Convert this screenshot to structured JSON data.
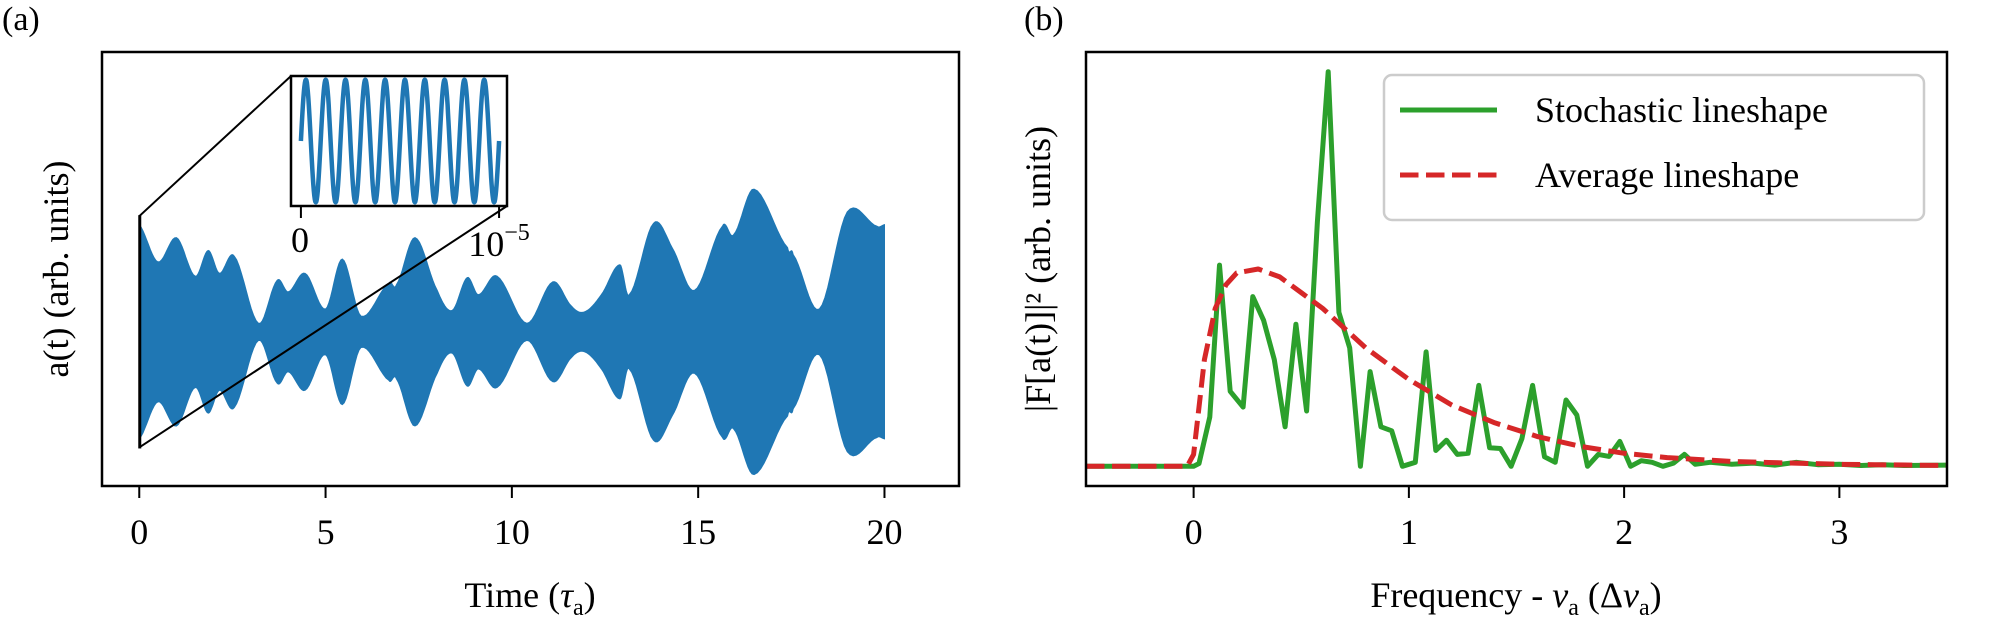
{
  "chart_data": [
    {
      "panel_label": "(a)",
      "type": "area",
      "xlabel": {
        "text": "Time (",
        "var": "τ",
        "sub": "a",
        "close": ")"
      },
      "ylabel": "a(t) (arb. units)",
      "xlim": [
        -1,
        22
      ],
      "ylim": [
        -1.08,
        1.96
      ],
      "xticks": [
        "0",
        "5",
        "10",
        "15",
        "20"
      ],
      "xtick_values": [
        0,
        5,
        10,
        15,
        20
      ],
      "yticks": [],
      "grid": false,
      "color": "#1f77b4",
      "description_of_series": "envelope",
      "envelope": {
        "t": [
          0,
          0.5,
          1.0,
          1.5,
          1.85,
          2.15,
          2.55,
          3.2,
          3.7,
          4.0,
          4.45,
          5.0,
          5.45,
          5.95,
          6.7,
          6.9,
          7.4,
          8.0,
          8.4,
          8.8,
          9.1,
          9.6,
          10.4,
          11.1,
          11.6,
          11.95,
          12.4,
          12.9,
          13.15,
          13.8,
          14.3,
          14.9,
          15.65,
          15.95,
          16.5,
          17.4,
          17.55,
          18.25,
          19.0,
          19.8,
          20
        ],
        "amplitude": [
          0.75,
          0.49,
          0.66,
          0.39,
          0.57,
          0.41,
          0.53,
          0.06,
          0.36,
          0.28,
          0.41,
          0.16,
          0.51,
          0.11,
          0.34,
          0.33,
          0.66,
          0.29,
          0.15,
          0.38,
          0.26,
          0.39,
          0.06,
          0.35,
          0.18,
          0.14,
          0.26,
          0.47,
          0.26,
          0.76,
          0.59,
          0.29,
          0.74,
          0.68,
          1.0,
          0.59,
          0.54,
          0.16,
          0.84,
          0.74,
          0.75
        ]
      },
      "inset": {
        "type": "line",
        "xlim": [
          -5e-07,
          1.04e-05
        ],
        "ylim": [
          -1.06,
          1.06
        ],
        "cycles": 10,
        "xticks": [
          "0",
          {
            "base": "10",
            "exp": "−5"
          }
        ],
        "xtick_values": [
          0,
          1e-05
        ],
        "zoom_region": {
          "x": [
            0,
            1e-05
          ],
          "y": [
            -0.81,
            0.81
          ]
        }
      }
    },
    {
      "panel_label": "(b)",
      "type": "line",
      "xlabel": {
        "text": "Frequency - ",
        "var": "ν",
        "sub": "a",
        "mid": " (Δ",
        "var2": "ν",
        "sub2": "a",
        "close": ")"
      },
      "ylabel": "|F[a(t)]|² (arb. units)",
      "xlim": [
        -0.5,
        3.5
      ],
      "ylim": [
        -0.05,
        1.05
      ],
      "xticks": [
        "0",
        "1",
        "2",
        "3"
      ],
      "xtick_values": [
        0,
        1,
        2,
        3
      ],
      "yticks": [],
      "grid": false,
      "legend": {
        "placement": "top-right"
      },
      "series": [
        {
          "name": "Stochastic lineshape",
          "color": "#2ca02c",
          "style": "solid",
          "x": [
            -0.5,
            -0.05,
            0,
            0.025,
            0.075,
            0.12,
            0.17,
            0.23,
            0.275,
            0.325,
            0.375,
            0.425,
            0.475,
            0.525,
            0.575,
            0.625,
            0.675,
            0.725,
            0.775,
            0.82,
            0.87,
            0.92,
            0.97,
            1.03,
            1.08,
            1.125,
            1.175,
            1.225,
            1.275,
            1.325,
            1.375,
            1.425,
            1.475,
            1.525,
            1.575,
            1.63,
            1.68,
            1.73,
            1.78,
            1.83,
            1.88,
            1.93,
            1.98,
            2.03,
            2.08,
            2.13,
            2.18,
            2.23,
            2.28,
            2.33,
            2.4,
            2.5,
            2.6,
            2.7,
            2.8,
            2.9,
            3.0,
            3.1,
            3.2,
            3.3,
            3.5
          ],
          "y": [
            0,
            0,
            0,
            0.007,
            0.125,
            0.51,
            0.19,
            0.15,
            0.43,
            0.37,
            0.27,
            0.1,
            0.36,
            0.14,
            0.62,
            1.0,
            0.39,
            0.3,
            0,
            0.24,
            0.1,
            0.09,
            0,
            0.01,
            0.29,
            0.04,
            0.066,
            0.03,
            0.033,
            0.205,
            0.047,
            0.045,
            0,
            0.07,
            0.205,
            0.024,
            0.01,
            0.168,
            0.13,
            0,
            0.03,
            0.025,
            0.063,
            0,
            0.014,
            0.01,
            0,
            0.008,
            0.03,
            0.005,
            0.01,
            0.005,
            0.008,
            0.003,
            0.01,
            0.004,
            0.005,
            0.002,
            0.004,
            0.002,
            0.003
          ]
        },
        {
          "name": "Average lineshape",
          "color": "#d62728",
          "style": "dashed",
          "x": [
            -0.5,
            -0.03,
            0,
            0.025,
            0.05,
            0.1,
            0.15,
            0.2,
            0.3,
            0.4,
            0.5,
            0.6,
            0.7,
            0.8,
            0.9,
            1.0,
            1.2,
            1.4,
            1.6,
            1.8,
            2.0,
            2.2,
            2.5,
            3.0,
            3.5
          ],
          "y": [
            0,
            0,
            0.03,
            0.15,
            0.27,
            0.4,
            0.46,
            0.49,
            0.5,
            0.48,
            0.44,
            0.4,
            0.35,
            0.3,
            0.26,
            0.22,
            0.155,
            0.11,
            0.075,
            0.05,
            0.033,
            0.022,
            0.012,
            0.005,
            0.002
          ]
        }
      ]
    }
  ]
}
